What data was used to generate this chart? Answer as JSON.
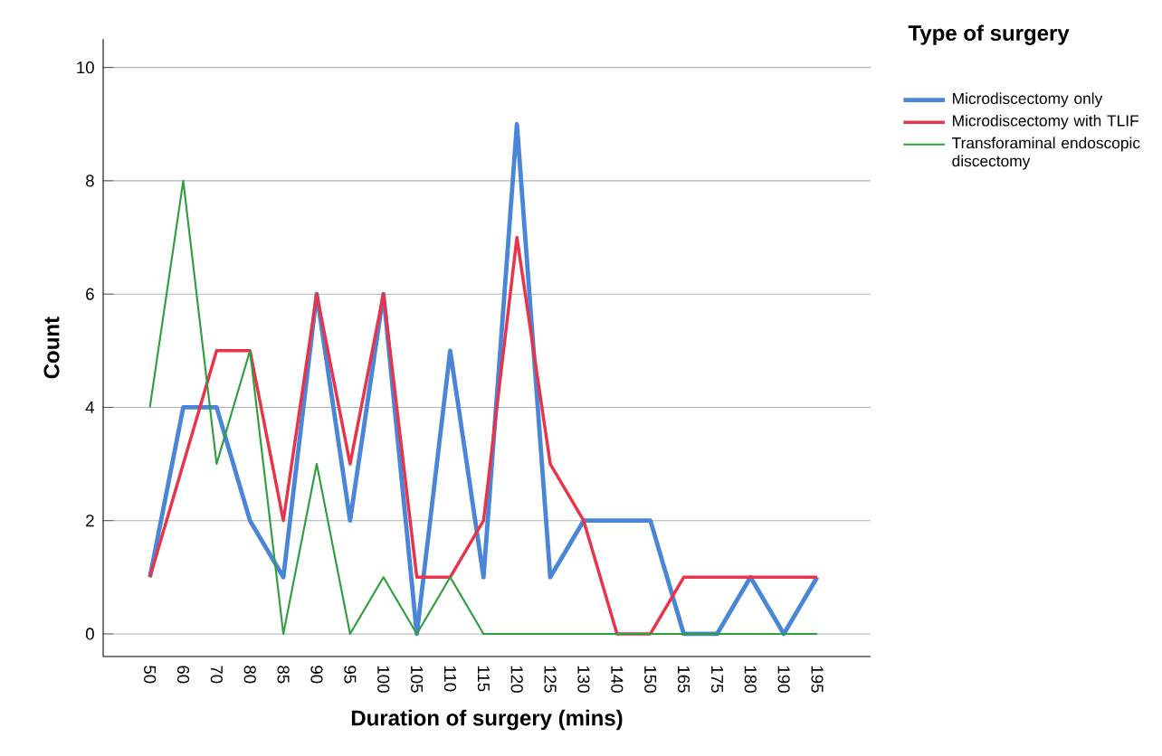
{
  "chart_data": {
    "type": "line",
    "xlabel": "Duration of surgery (mins)",
    "ylabel": "Count",
    "legend_title": "Type of surgery",
    "categories": [
      "50",
      "60",
      "70",
      "80",
      "85",
      "90",
      "95",
      "100",
      "105",
      "110",
      "115",
      "120",
      "125",
      "130",
      "140",
      "150",
      "165",
      "175",
      "180",
      "190",
      "195"
    ],
    "series": [
      {
        "name": "Microdiscectomy only",
        "color": "#4a86d8",
        "values": [
          1,
          4,
          4,
          2,
          1,
          6,
          2,
          6,
          0,
          5,
          1,
          9,
          1,
          2,
          2,
          2,
          0,
          0,
          1,
          0,
          1
        ]
      },
      {
        "name": "Microdiscectomy with TLIF",
        "color": "#e8334a",
        "values": [
          1,
          3,
          5,
          5,
          2,
          6,
          3,
          6,
          1,
          1,
          2,
          7,
          3,
          2,
          0,
          0,
          1,
          1,
          1,
          1,
          1
        ]
      },
      {
        "name": "Transforaminal endoscopic discectomy",
        "color": "#2e9e3e",
        "values": [
          4,
          8,
          3,
          5,
          0,
          3,
          0,
          1,
          0,
          1,
          0,
          0,
          0,
          0,
          0,
          0,
          0,
          0,
          0,
          0,
          0
        ]
      }
    ],
    "ylim": [
      -0.4,
      10.5
    ],
    "yticks": [
      0,
      2,
      4,
      6,
      8,
      10
    ],
    "grid": "y",
    "legend": "right",
    "marker": "none",
    "line_style": "solid"
  }
}
